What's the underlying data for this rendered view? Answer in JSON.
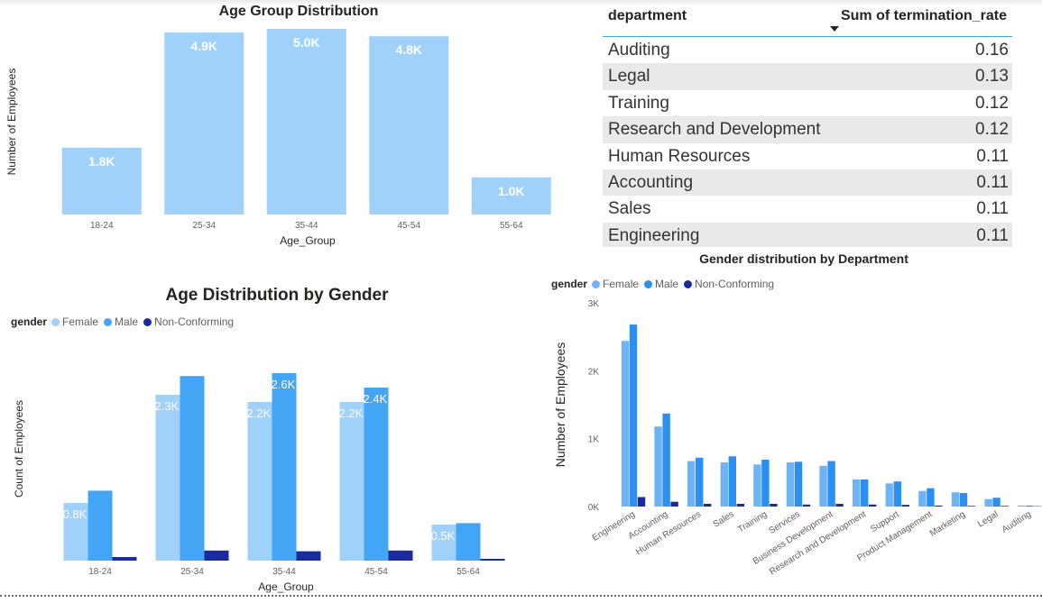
{
  "age_group_chart": {
    "title": "Age Group Distribution",
    "xlabel": "Age_Group",
    "ylabel": "Number of Employees",
    "categories": [
      "18-24",
      "25-34",
      "35-44",
      "45-54",
      "55-64"
    ],
    "values": [
      1800,
      4900,
      5000,
      4800,
      1000
    ],
    "data_labels": [
      "1.8K",
      "4.9K",
      "5.0K",
      "4.8K",
      "1.0K"
    ],
    "color": "#a0d1fa"
  },
  "termination_table": {
    "col_department": "department",
    "col_rate": "Sum of termination_rate",
    "rows": [
      {
        "department": "Auditing",
        "rate": "0.16"
      },
      {
        "department": "Legal",
        "rate": "0.13"
      },
      {
        "department": "Training",
        "rate": "0.12"
      },
      {
        "department": "Research and Development",
        "rate": "0.12"
      },
      {
        "department": "Human Resources",
        "rate": "0.11"
      },
      {
        "department": "Accounting",
        "rate": "0.11"
      },
      {
        "department": "Sales",
        "rate": "0.11"
      },
      {
        "department": "Engineering",
        "rate": "0.11"
      }
    ]
  },
  "gender_age_chart": {
    "title": "Age Distribution by Gender",
    "xlabel": "Age_Group",
    "ylabel": "Count of Employees",
    "legend_title": "gender",
    "categories": [
      "18-24",
      "25-34",
      "35-44",
      "45-54",
      "55-64"
    ],
    "series": [
      {
        "name": "Female",
        "color": "#a0d1fa",
        "values": [
          800,
          2300,
          2200,
          2200,
          500
        ],
        "labels": [
          "0.8K",
          "2.3K",
          "2.2K",
          "2.2K",
          "0.5K"
        ]
      },
      {
        "name": "Male",
        "color": "#42a5f5",
        "values": [
          970,
          2560,
          2600,
          2400,
          520
        ],
        "labels": [
          "",
          "",
          "2.6K",
          "2.4K",
          ""
        ]
      },
      {
        "name": "Non-Conforming",
        "color": "#1a2ba0",
        "values": [
          50,
          140,
          130,
          140,
          25
        ],
        "labels": [
          "",
          "",
          "",
          "",
          ""
        ]
      }
    ]
  },
  "gender_dept_chart": {
    "title": "Gender distribution by Department",
    "ylabel": "Number of Employees",
    "legend_title": "gender",
    "ylim": [
      0,
      3000
    ],
    "yticks": [
      "0K",
      "1K",
      "2K",
      "3K"
    ],
    "categories": [
      "Engineering",
      "Accounting",
      "Human Resources",
      "Sales",
      "Training",
      "Services",
      "Business Development",
      "Research and Development",
      "Support",
      "Product Management",
      "Marketing",
      "Legal",
      "Auditing"
    ],
    "series": [
      {
        "name": "Female",
        "color": "#6cb4f7",
        "values": [
          2440,
          1180,
          670,
          650,
          620,
          650,
          600,
          400,
          340,
          230,
          210,
          110,
          15
        ]
      },
      {
        "name": "Male",
        "color": "#2a8ff0",
        "values": [
          2680,
          1370,
          720,
          740,
          690,
          660,
          670,
          400,
          370,
          270,
          200,
          130,
          15
        ]
      },
      {
        "name": "Non-Conforming",
        "color": "#1a2ba0",
        "values": [
          140,
          70,
          40,
          40,
          40,
          30,
          40,
          30,
          25,
          15,
          10,
          10,
          5
        ]
      }
    ]
  }
}
